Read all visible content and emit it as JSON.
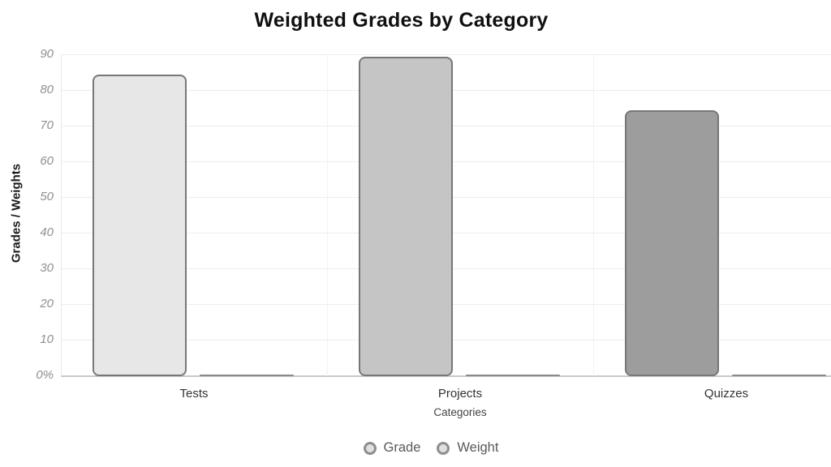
{
  "title": "Weighted Grades by Category",
  "chart_data": {
    "type": "bar",
    "title": "Weighted Grades by Category",
    "categories": [
      "Tests",
      "Projects",
      "Quizzes"
    ],
    "series": [
      {
        "name": "Grade",
        "values": [
          84.5,
          89.5,
          74.5
        ],
        "fill_colors": [
          "#e7e7e7",
          "#c5c5c5",
          "#9d9d9d"
        ],
        "border_color": "#777777"
      },
      {
        "name": "Weight",
        "values": [
          0.4,
          0.35,
          0.25
        ],
        "fill_colors": [
          "#c2c2c2",
          "#c2c2c2",
          "#c2c2c2"
        ],
        "border_color": "#8a8a8a"
      }
    ],
    "xlabel": "Categories",
    "ylabel": "Grades / Weights",
    "ylim": [
      0,
      90
    ],
    "yticks": [
      {
        "value": 0,
        "label": "0%"
      },
      {
        "value": 10,
        "label": "10"
      },
      {
        "value": 20,
        "label": "20"
      },
      {
        "value": 30,
        "label": "30"
      },
      {
        "value": 40,
        "label": "40"
      },
      {
        "value": 50,
        "label": "50"
      },
      {
        "value": 60,
        "label": "60"
      },
      {
        "value": 70,
        "label": "70"
      },
      {
        "value": 80,
        "label": "80"
      },
      {
        "value": 90,
        "label": "90"
      }
    ],
    "grid": true,
    "legend": {
      "position": "bottom",
      "items": [
        "Grade",
        "Weight"
      ]
    }
  }
}
